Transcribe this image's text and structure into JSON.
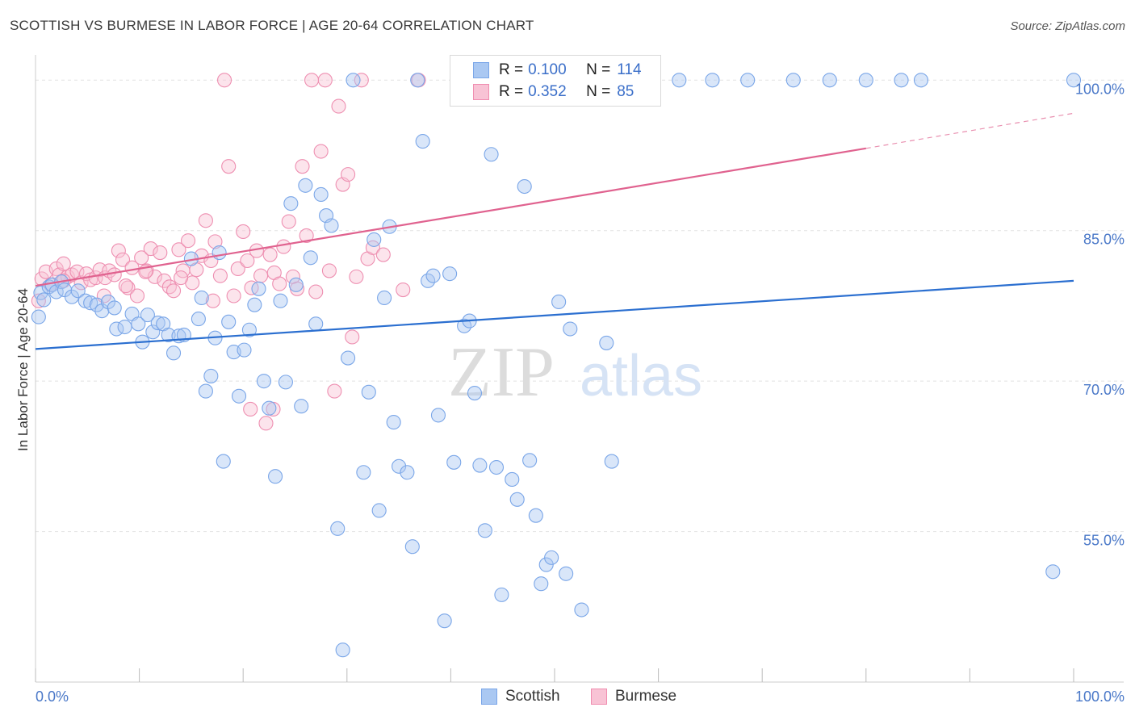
{
  "header": {
    "title": "SCOTTISH VS BURMESE IN LABOR FORCE | AGE 20-64 CORRELATION CHART",
    "source": "Source: ZipAtlas.com"
  },
  "watermark": {
    "zip": "ZIP",
    "atlas": "atlas"
  },
  "legend": {
    "rows": [
      {
        "r_label": "R =",
        "r_value": "0.100",
        "n_label": "N =",
        "n_value": "114",
        "color": "#7aa6e8",
        "fill": "#aac8f2"
      },
      {
        "r_label": "R =",
        "r_value": "0.352",
        "n_label": "N =",
        "n_value": "85",
        "color": "#f08db0",
        "fill": "#f8c3d5"
      }
    ]
  },
  "bottom_legend": {
    "items": [
      {
        "label": "Scottish",
        "color": "#7aa6e8",
        "fill": "#aac8f2"
      },
      {
        "label": "Burmese",
        "color": "#f08db0",
        "fill": "#f8c3d5"
      }
    ]
  },
  "colors": {
    "scottish_stroke": "#7aa6e8",
    "scottish_fill": "rgba(170,200,242,0.45)",
    "scottish_line": "#2b6fd0",
    "burmese_stroke": "#ee8fb1",
    "burmese_fill": "rgba(248,195,213,0.45)",
    "burmese_line": "#e0628f",
    "grid": "#e2e2e2",
    "axis_text": "#4a78c8"
  },
  "chart_data": {
    "type": "scatter",
    "title": "SCOTTISH VS BURMESE IN LABOR FORCE | AGE 20-64 CORRELATION CHART",
    "xlabel": "",
    "ylabel": "In Labor Force | Age 20-64",
    "xlim": [
      0,
      100
    ],
    "ylim": [
      40,
      103
    ],
    "x_tick_labels": [
      "0.0%",
      "100.0%"
    ],
    "y_ticks": [
      {
        "value": 55,
        "label": "55.0%"
      },
      {
        "value": 70,
        "label": "70.0%"
      },
      {
        "value": 85,
        "label": "85.0%"
      },
      {
        "value": 100,
        "label": "100.0%"
      }
    ],
    "grid": true,
    "legend_position": "top-center",
    "series": [
      {
        "name": "Scottish",
        "r": 0.1,
        "n": 114,
        "trend": {
          "x": [
            0,
            100
          ],
          "y": [
            73.2,
            80.0
          ]
        },
        "points": [
          [
            0.3,
            76.4
          ],
          [
            0.5,
            78.8
          ],
          [
            0.8,
            78.1
          ],
          [
            1.3,
            79.4
          ],
          [
            1.6,
            79.6
          ],
          [
            2.0,
            78.9
          ],
          [
            2.5,
            79.9
          ],
          [
            2.8,
            79.1
          ],
          [
            3.5,
            78.4
          ],
          [
            4.1,
            79.0
          ],
          [
            4.8,
            78.0
          ],
          [
            5.3,
            77.8
          ],
          [
            5.9,
            77.6
          ],
          [
            6.4,
            77.0
          ],
          [
            7.0,
            77.9
          ],
          [
            7.6,
            77.3
          ],
          [
            7.8,
            75.2
          ],
          [
            8.6,
            75.4
          ],
          [
            9.3,
            76.7
          ],
          [
            9.9,
            75.7
          ],
          [
            10.3,
            73.9
          ],
          [
            10.8,
            76.6
          ],
          [
            11.3,
            74.9
          ],
          [
            11.8,
            75.8
          ],
          [
            12.3,
            75.7
          ],
          [
            12.8,
            74.6
          ],
          [
            13.3,
            72.8
          ],
          [
            13.8,
            74.5
          ],
          [
            14.3,
            74.6
          ],
          [
            15.0,
            82.2
          ],
          [
            15.7,
            76.2
          ],
          [
            16.0,
            78.3
          ],
          [
            16.4,
            69.0
          ],
          [
            16.9,
            70.5
          ],
          [
            17.3,
            74.3
          ],
          [
            17.7,
            82.8
          ],
          [
            18.1,
            62.0
          ],
          [
            18.6,
            75.9
          ],
          [
            19.1,
            72.9
          ],
          [
            19.6,
            68.5
          ],
          [
            20.1,
            73.1
          ],
          [
            20.6,
            75.1
          ],
          [
            21.1,
            77.6
          ],
          [
            21.5,
            79.2
          ],
          [
            22.0,
            70.0
          ],
          [
            22.5,
            67.3
          ],
          [
            23.1,
            60.5
          ],
          [
            23.6,
            78.0
          ],
          [
            24.1,
            69.9
          ],
          [
            24.6,
            87.7
          ],
          [
            25.1,
            79.6
          ],
          [
            25.6,
            67.5
          ],
          [
            26.0,
            89.5
          ],
          [
            26.5,
            82.3
          ],
          [
            27.0,
            75.7
          ],
          [
            27.5,
            88.6
          ],
          [
            28.0,
            86.5
          ],
          [
            28.5,
            85.5
          ],
          [
            29.1,
            55.3
          ],
          [
            29.6,
            43.2
          ],
          [
            30.1,
            72.3
          ],
          [
            30.6,
            100.0
          ],
          [
            31.6,
            60.9
          ],
          [
            32.1,
            68.9
          ],
          [
            32.6,
            84.1
          ],
          [
            33.1,
            57.1
          ],
          [
            33.6,
            78.3
          ],
          [
            34.1,
            85.4
          ],
          [
            34.5,
            65.9
          ],
          [
            35.0,
            61.5
          ],
          [
            35.8,
            60.9
          ],
          [
            36.3,
            53.5
          ],
          [
            36.8,
            100.0
          ],
          [
            37.3,
            93.9
          ],
          [
            37.8,
            80.0
          ],
          [
            38.3,
            80.5
          ],
          [
            38.8,
            66.6
          ],
          [
            39.4,
            46.1
          ],
          [
            39.9,
            80.7
          ],
          [
            40.3,
            61.9
          ],
          [
            41.3,
            75.5
          ],
          [
            41.8,
            76.0
          ],
          [
            42.3,
            68.8
          ],
          [
            42.8,
            61.6
          ],
          [
            43.3,
            55.1
          ],
          [
            43.9,
            92.6
          ],
          [
            44.4,
            61.4
          ],
          [
            44.9,
            48.7
          ],
          [
            45.4,
            100.0
          ],
          [
            45.9,
            60.2
          ],
          [
            46.4,
            58.2
          ],
          [
            47.1,
            89.4
          ],
          [
            47.6,
            62.1
          ],
          [
            48.2,
            56.6
          ],
          [
            48.7,
            49.8
          ],
          [
            49.2,
            51.7
          ],
          [
            49.7,
            52.4
          ],
          [
            50.4,
            77.9
          ],
          [
            51.1,
            50.8
          ],
          [
            51.5,
            75.2
          ],
          [
            52.6,
            47.2
          ],
          [
            55.0,
            73.8
          ],
          [
            55.5,
            62.0
          ],
          [
            57.1,
            100.0
          ],
          [
            62.0,
            100.0
          ],
          [
            65.2,
            100.0
          ],
          [
            68.6,
            100.0
          ],
          [
            73.0,
            100.0
          ],
          [
            76.5,
            100.0
          ],
          [
            80.0,
            100.0
          ],
          [
            83.4,
            100.0
          ],
          [
            85.3,
            100.0
          ],
          [
            98.0,
            51.0
          ],
          [
            100.0,
            100.0
          ]
        ]
      },
      {
        "name": "Burmese",
        "r": 0.352,
        "n": 85,
        "trend": {
          "x": [
            0,
            80
          ],
          "y": [
            79.5,
            93.2
          ],
          "dashed_to": {
            "x": 100,
            "y": 96.7
          }
        },
        "points": [
          [
            0.3,
            78.0
          ],
          [
            0.6,
            80.2
          ],
          [
            1.0,
            80.9
          ],
          [
            1.5,
            79.6
          ],
          [
            2.0,
            81.2
          ],
          [
            2.3,
            80.6
          ],
          [
            2.7,
            81.7
          ],
          [
            3.1,
            80.4
          ],
          [
            3.5,
            80.6
          ],
          [
            4.0,
            80.9
          ],
          [
            4.4,
            79.8
          ],
          [
            4.9,
            80.7
          ],
          [
            5.3,
            80.1
          ],
          [
            5.8,
            80.3
          ],
          [
            6.2,
            81.1
          ],
          [
            6.7,
            80.3
          ],
          [
            7.1,
            81.0
          ],
          [
            7.6,
            80.6
          ],
          [
            8.0,
            83.0
          ],
          [
            8.4,
            82.1
          ],
          [
            8.9,
            79.3
          ],
          [
            9.3,
            81.3
          ],
          [
            9.8,
            78.5
          ],
          [
            10.2,
            82.3
          ],
          [
            10.7,
            81.0
          ],
          [
            11.1,
            83.2
          ],
          [
            11.5,
            80.4
          ],
          [
            12.0,
            82.8
          ],
          [
            12.4,
            80.0
          ],
          [
            12.9,
            79.4
          ],
          [
            13.3,
            79.0
          ],
          [
            13.8,
            83.1
          ],
          [
            14.2,
            81.0
          ],
          [
            14.7,
            84.0
          ],
          [
            15.1,
            79.8
          ],
          [
            15.5,
            81.1
          ],
          [
            16.0,
            82.5
          ],
          [
            16.4,
            86.0
          ],
          [
            16.9,
            82.0
          ],
          [
            17.3,
            83.9
          ],
          [
            17.8,
            80.5
          ],
          [
            18.2,
            100.0
          ],
          [
            18.6,
            91.4
          ],
          [
            19.1,
            78.5
          ],
          [
            19.5,
            81.2
          ],
          [
            20.0,
            84.9
          ],
          [
            20.4,
            82.0
          ],
          [
            20.8,
            79.3
          ],
          [
            21.3,
            83.0
          ],
          [
            21.7,
            80.5
          ],
          [
            22.2,
            65.8
          ],
          [
            22.6,
            82.6
          ],
          [
            23.0,
            80.8
          ],
          [
            23.5,
            79.7
          ],
          [
            23.9,
            83.4
          ],
          [
            24.4,
            85.9
          ],
          [
            24.8,
            80.4
          ],
          [
            25.2,
            79.2
          ],
          [
            25.7,
            91.4
          ],
          [
            26.1,
            84.5
          ],
          [
            26.6,
            100.0
          ],
          [
            27.0,
            78.9
          ],
          [
            27.5,
            92.9
          ],
          [
            27.9,
            100.0
          ],
          [
            28.3,
            81.0
          ],
          [
            28.8,
            69.0
          ],
          [
            29.2,
            97.4
          ],
          [
            29.6,
            89.6
          ],
          [
            30.1,
            90.6
          ],
          [
            30.5,
            74.4
          ],
          [
            30.9,
            80.4
          ],
          [
            31.4,
            100.0
          ],
          [
            32.0,
            82.2
          ],
          [
            32.5,
            83.3
          ],
          [
            33.5,
            82.6
          ],
          [
            35.4,
            79.1
          ],
          [
            36.9,
            100.0
          ],
          [
            22.9,
            67.2
          ],
          [
            8.7,
            79.5
          ],
          [
            6.6,
            78.5
          ],
          [
            2.7,
            80.0
          ],
          [
            17.1,
            78.0
          ],
          [
            20.7,
            67.2
          ],
          [
            10.6,
            80.9
          ],
          [
            14.0,
            80.3
          ]
        ]
      }
    ]
  }
}
